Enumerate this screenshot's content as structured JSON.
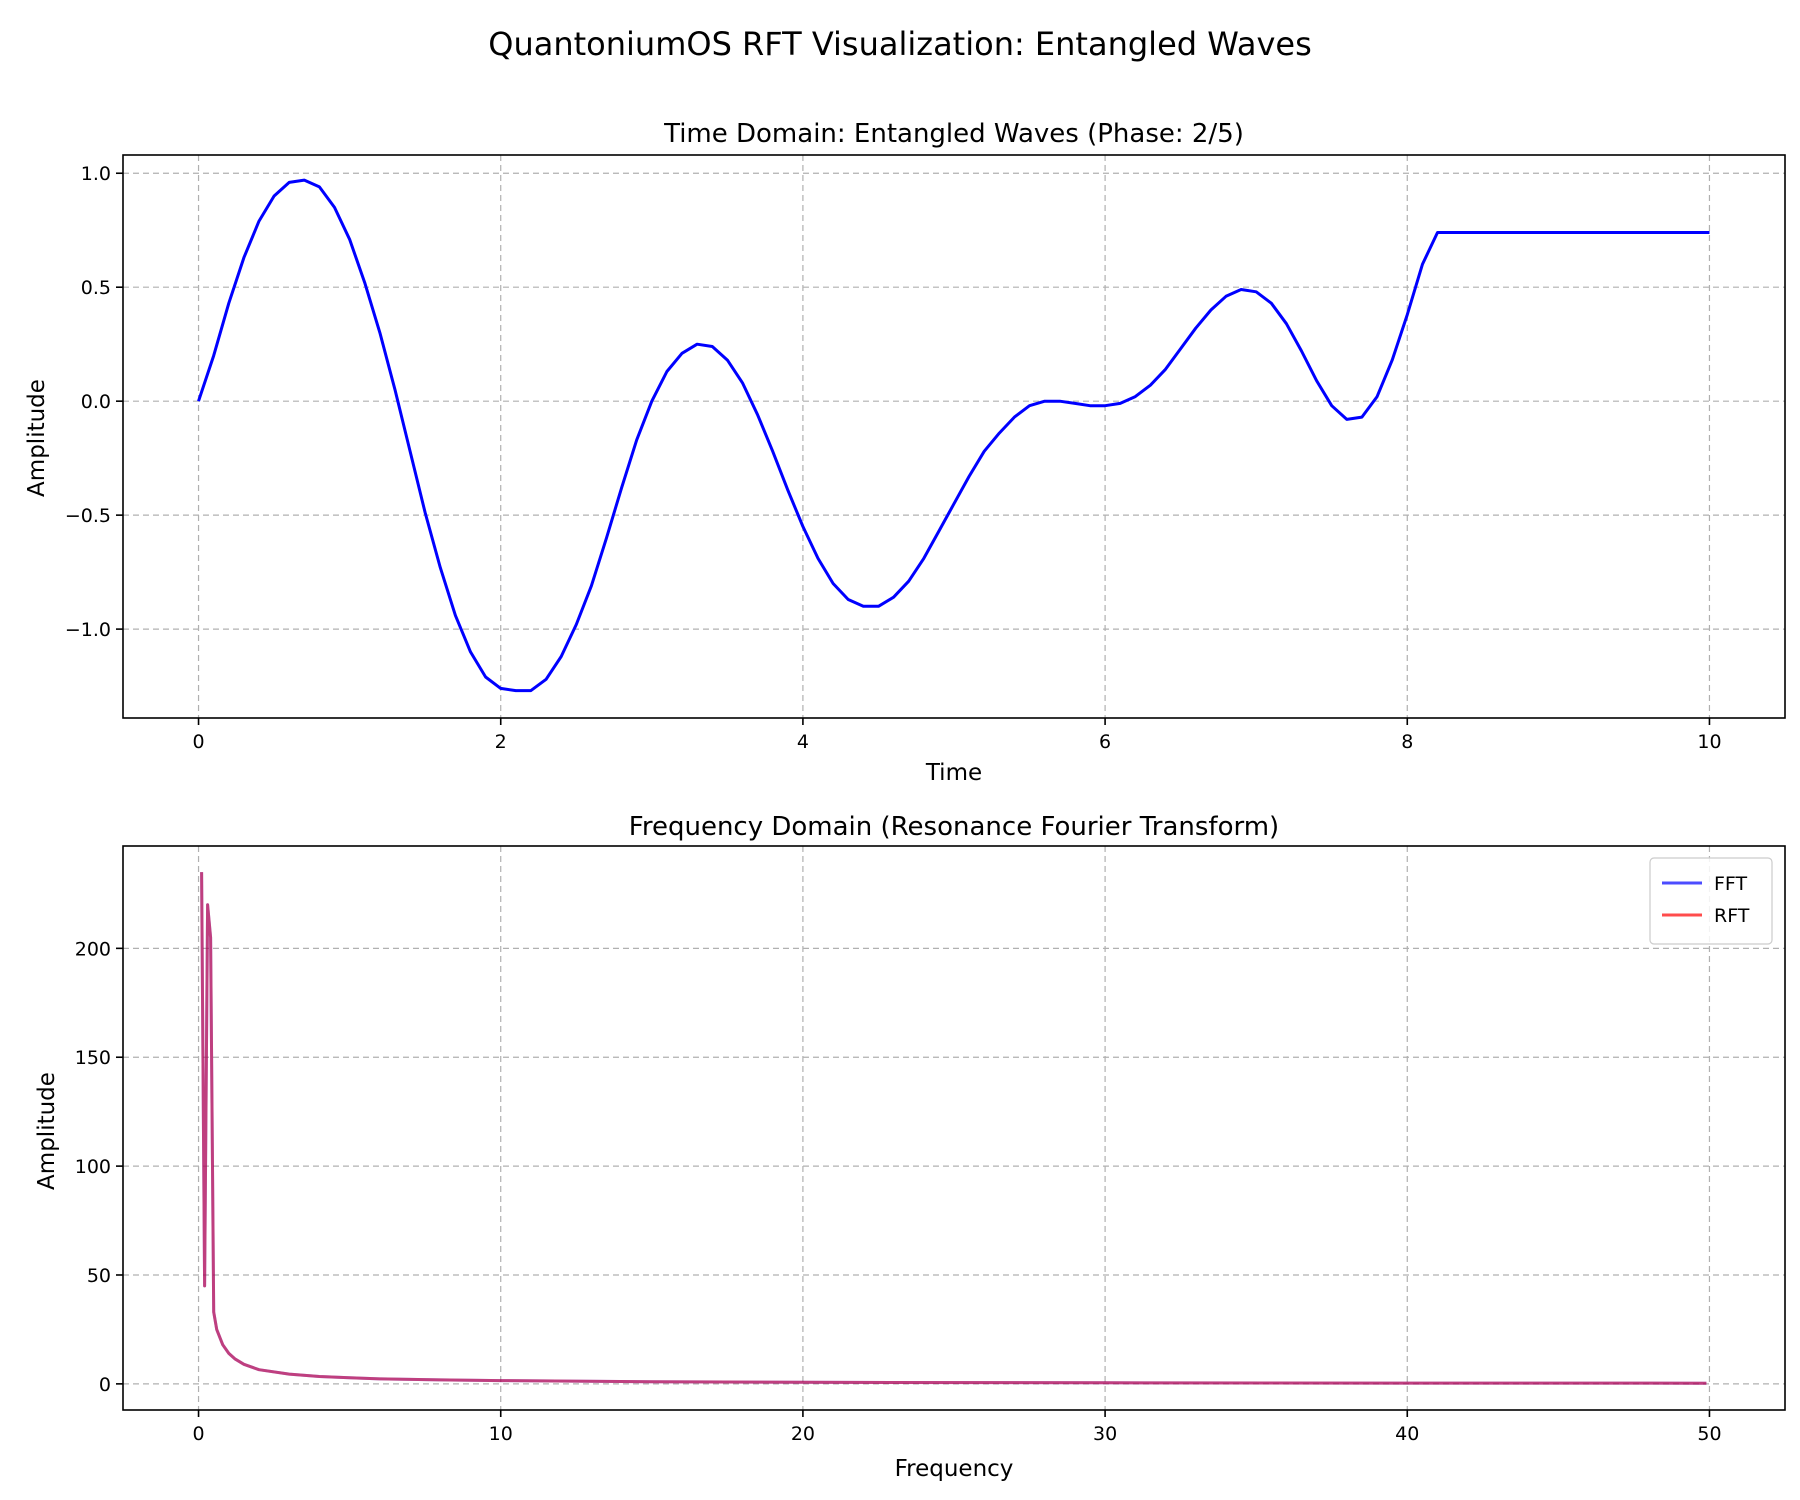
{
  "figure_title": "QuantoniumOS RFT Visualization: Entangled Waves",
  "colors": {
    "time_line": "#0000ff",
    "fft": "#0000ff",
    "rft": "#ff0000",
    "overlap": "#8b1a89"
  },
  "chart_data": [
    {
      "type": "line",
      "title": "Time Domain: Entangled Waves (Phase: 2/5)",
      "xlabel": "Time",
      "ylabel": "Amplitude",
      "xlim": [
        -0.5,
        10.5
      ],
      "ylim": [
        -1.39,
        1.08
      ],
      "xticks": [
        0,
        2,
        4,
        6,
        8,
        10
      ],
      "xtick_labels": [
        "0",
        "2",
        "4",
        "6",
        "8",
        "10"
      ],
      "yticks": [
        1.0,
        0.5,
        0.0,
        -0.5,
        -1.0
      ],
      "ytick_labels": [
        "1.0",
        "0.5",
        "0.0",
        "−0.5",
        "−1.0"
      ],
      "grid": true,
      "series": [
        {
          "color": "#0000ff",
          "x": [
            0,
            0.1,
            0.2,
            0.3,
            0.4,
            0.5,
            0.6,
            0.7,
            0.8,
            0.9,
            1.0,
            1.1,
            1.2,
            1.3,
            1.4,
            1.5,
            1.6,
            1.7,
            1.8,
            1.9,
            2.0,
            2.1,
            2.2,
            2.3,
            2.4,
            2.5,
            2.6,
            2.7,
            2.8,
            2.9,
            3.0,
            3.1,
            3.2,
            3.3,
            3.4,
            3.5,
            3.6,
            3.7,
            3.8,
            3.9,
            4.0,
            4.1,
            4.2,
            4.3,
            4.4,
            4.5,
            4.6,
            4.7,
            4.8,
            4.9,
            5.0,
            5.1,
            5.2,
            5.3,
            5.4,
            5.5,
            5.6,
            5.7,
            5.8,
            5.9,
            6.0,
            6.1,
            6.2,
            6.3,
            6.4,
            6.5,
            6.6,
            6.7,
            6.8,
            6.9,
            7.0,
            7.1,
            7.2,
            7.3,
            7.4,
            7.5,
            7.6,
            7.7,
            7.8,
            7.9,
            8.0,
            8.1,
            8.2,
            8.3,
            8.4,
            8.5,
            8.6,
            8.7,
            8.8,
            8.9,
            9.0,
            9.1,
            9.2,
            9.3,
            9.4,
            9.5,
            9.6,
            9.7,
            9.8,
            9.9,
            10.0
          ],
          "values": [
            0.0,
            0.2,
            0.43,
            0.63,
            0.79,
            0.9,
            0.96,
            0.97,
            0.94,
            0.85,
            0.71,
            0.52,
            0.3,
            0.05,
            -0.22,
            -0.49,
            -0.73,
            -0.94,
            -1.1,
            -1.21,
            -1.26,
            -1.27,
            -1.27,
            -1.22,
            -1.12,
            -0.98,
            -0.81,
            -0.6,
            -0.38,
            -0.17,
            0.0,
            0.13,
            0.21,
            0.25,
            0.24,
            0.18,
            0.08,
            -0.06,
            -0.22,
            -0.39,
            -0.55,
            -0.69,
            -0.8,
            -0.87,
            -0.9,
            -0.9,
            -0.86,
            -0.79,
            -0.69,
            -0.57,
            -0.45,
            -0.33,
            -0.22,
            -0.14,
            -0.07,
            -0.02,
            0.0,
            0.0,
            -0.01,
            -0.02,
            -0.02,
            -0.01,
            0.02,
            0.07,
            0.14,
            0.23,
            0.32,
            0.4,
            0.46,
            0.49,
            0.48,
            0.43,
            0.34,
            0.22,
            0.09,
            -0.02,
            -0.08,
            -0.07,
            0.02,
            0.18,
            0.38,
            0.6,
            0.74,
            0.74,
            0.74,
            0.74,
            0.74,
            0.74,
            0.74,
            0.74,
            0.74,
            0.74,
            0.74,
            0.74,
            0.74,
            0.74,
            0.74,
            0.74,
            0.74,
            0.74,
            0.74
          ]
        }
      ]
    },
    {
      "type": "line",
      "title": "Frequency Domain (Resonance Fourier Transform)",
      "xlabel": "Frequency",
      "ylabel": "Amplitude",
      "xlim": [
        -2.5,
        52.5
      ],
      "ylim": [
        -12,
        247
      ],
      "xticks": [
        0,
        10,
        20,
        30,
        40,
        50
      ],
      "xtick_labels": [
        "0",
        "10",
        "20",
        "30",
        "40",
        "50"
      ],
      "yticks": [
        0,
        50,
        100,
        150,
        200
      ],
      "ytick_labels": [
        "0",
        "50",
        "100",
        "150",
        "200"
      ],
      "grid": true,
      "legend_position": "top-right",
      "series": [
        {
          "name": "FFT",
          "color": "#0000ff",
          "x": [
            0.1,
            0.2,
            0.3,
            0.4,
            0.5,
            0.6,
            0.8,
            1.0,
            1.2,
            1.5,
            2.0,
            3.0,
            4.0,
            5.0,
            6.0,
            8.0,
            10.0,
            15.0,
            20.0,
            30.0,
            40.0,
            49.9
          ],
          "values": [
            235,
            45,
            220,
            205,
            33,
            25,
            18,
            14,
            11.5,
            9,
            6.5,
            4.5,
            3.4,
            2.8,
            2.3,
            1.8,
            1.5,
            1.0,
            0.7,
            0.5,
            0.35,
            0.3
          ]
        },
        {
          "name": "RFT",
          "color": "#ff0000",
          "x": [
            0.1,
            0.2,
            0.3,
            0.4,
            0.5,
            0.6,
            0.8,
            1.0,
            1.2,
            1.5,
            2.0,
            3.0,
            4.0,
            5.0,
            6.0,
            8.0,
            10.0,
            15.0,
            20.0,
            30.0,
            40.0,
            49.9
          ],
          "values": [
            235,
            45,
            220,
            205,
            33,
            25,
            18,
            14,
            11.5,
            9,
            6.5,
            4.5,
            3.4,
            2.8,
            2.3,
            1.8,
            1.5,
            1.0,
            0.7,
            0.5,
            0.35,
            0.3
          ]
        }
      ]
    }
  ]
}
